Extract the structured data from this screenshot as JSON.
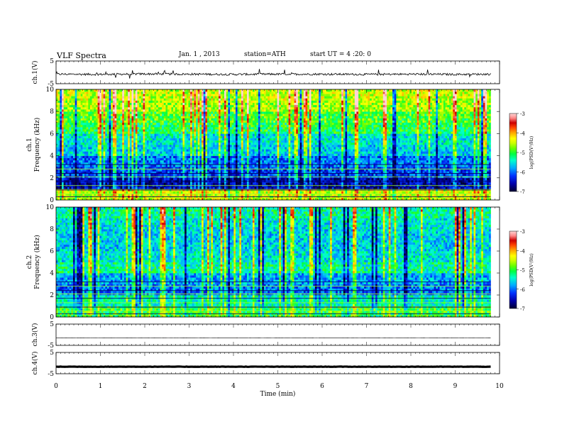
{
  "header": {
    "title": "VLF Spectra",
    "date": "Jan. 1 , 2013",
    "station": "station=ATH",
    "start": "start UT = 4 :20: 0"
  },
  "colorbar": {
    "label": "log(PSD(V²/Hz)",
    "ticks": [
      "-3",
      "-4",
      "-5",
      "-6",
      "-7"
    ],
    "colors": [
      "#000033",
      "#0000aa",
      "#0033ff",
      "#00aaff",
      "#00ffcc",
      "#00ff44",
      "#66ff00",
      "#ccff00",
      "#ffff00",
      "#ffaa00",
      "#ff4400",
      "#cc0000",
      "#ff8888",
      "#ffd6d6"
    ]
  },
  "chart_data": [
    {
      "type": "line",
      "panel": "ch1-waveform",
      "ylabel": "ch.1(V)",
      "ylim": [
        -5,
        5
      ],
      "y_ticks": [
        "5",
        "-5"
      ],
      "x": [
        0,
        1,
        2,
        3,
        4,
        5,
        6,
        7,
        8,
        9,
        9.8
      ],
      "values": [
        -0.8,
        -0.9,
        -0.7,
        -0.8,
        -0.9,
        -0.8,
        -0.8,
        -0.9,
        -0.8,
        -0.9,
        -0.8
      ]
    },
    {
      "type": "heatmap",
      "panel": "ch1-spectrogram",
      "ylabel": "ch.1 Frequency (kHz)",
      "ylim": [
        0,
        10
      ],
      "y_ticks": [
        "0",
        "2",
        "4",
        "6",
        "8",
        "10"
      ],
      "x_range": [
        0,
        9.8
      ],
      "zlim": [
        -7,
        -3
      ],
      "z_label": "log(PSD(V²/Hz)",
      "freq_bands_khz": [
        0,
        1,
        2,
        3,
        4,
        5,
        6,
        7,
        8,
        9,
        10
      ],
      "band_log_psd": [
        -4.5,
        -6.6,
        -6.2,
        -6.0,
        -5.6,
        -5.5,
        -5.1,
        -4.9,
        -4.6,
        -4.5
      ]
    },
    {
      "type": "heatmap",
      "panel": "ch2-spectrogram",
      "ylabel": "ch.2 Frequency (kHz)",
      "ylim": [
        0,
        10
      ],
      "y_ticks": [
        "0",
        "2",
        "4",
        "6",
        "8",
        "10"
      ],
      "x_range": [
        0,
        9.8
      ],
      "zlim": [
        -7,
        -3
      ],
      "z_label": "log(PSD(V²/Hz)",
      "freq_bands_khz": [
        0,
        1,
        2,
        3,
        4,
        5,
        6,
        7,
        8,
        9,
        10
      ],
      "band_log_psd": [
        -5.0,
        -5.4,
        -6.0,
        -5.8,
        -5.3,
        -5.5,
        -5.6,
        -5.6,
        -5.5,
        -5.3
      ]
    },
    {
      "type": "line",
      "panel": "ch3-waveform",
      "ylabel": "ch.3(V)",
      "ylim": [
        -5,
        5
      ],
      "y_ticks": [
        "5",
        "-5"
      ],
      "x": [
        0,
        9.8
      ],
      "values": [
        -1.5,
        -1.5
      ]
    },
    {
      "type": "line",
      "panel": "ch4-waveform",
      "ylabel": "ch.4(V)",
      "ylim": [
        -5,
        5
      ],
      "y_ticks": [
        "5",
        "-5"
      ],
      "x": [
        0,
        9.8
      ],
      "values": [
        -1.7,
        -1.7
      ]
    }
  ],
  "x_axis": {
    "label": "Time (min)",
    "range": [
      0,
      10
    ],
    "ticks": [
      "0",
      "1",
      "2",
      "3",
      "4",
      "5",
      "6",
      "7",
      "8",
      "9",
      "10"
    ]
  }
}
